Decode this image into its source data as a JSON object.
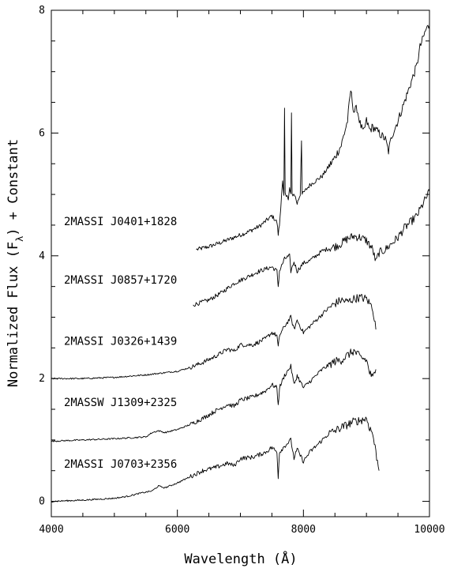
{
  "chart_data": {
    "type": "line",
    "xlabel": "Wavelength (Å)",
    "ylabel_main": "Normalized Flux (F",
    "ylabel_sub": "λ",
    "ylabel_tail": ") + Constant",
    "xlim": [
      4000,
      10000
    ],
    "ylim": [
      -0.25,
      8.0
    ],
    "x_ticks": [
      4000,
      6000,
      8000,
      10000
    ],
    "x_tick_labels": [
      "4000",
      "6000",
      "8000",
      "10000"
    ],
    "x_minor_step": 500,
    "y_ticks": [
      0,
      2,
      4,
      6,
      8
    ],
    "y_tick_labels": [
      "0",
      "2",
      "4",
      "6",
      "8"
    ],
    "y_minor_step": 0.5,
    "grid": false,
    "series": [
      {
        "name": "2MASSI J0401+1828",
        "label_pos": [
          4200,
          4.5
        ],
        "points": [
          [
            6300,
            4.1
          ],
          [
            6500,
            4.15
          ],
          [
            6700,
            4.22
          ],
          [
            6900,
            4.3
          ],
          [
            7100,
            4.38
          ],
          [
            7300,
            4.48
          ],
          [
            7500,
            4.65
          ],
          [
            7580,
            4.55
          ],
          [
            7600,
            4.35
          ],
          [
            7620,
            4.5
          ],
          [
            7650,
            4.95
          ],
          [
            7670,
            5.2
          ],
          [
            7690,
            4.95
          ],
          [
            7700,
            6.4
          ],
          [
            7710,
            5.0
          ],
          [
            7740,
            5.0
          ],
          [
            7760,
            4.9
          ],
          [
            7780,
            5.1
          ],
          [
            7800,
            5.0
          ],
          [
            7810,
            6.3
          ],
          [
            7820,
            5.0
          ],
          [
            7860,
            5.0
          ],
          [
            7900,
            4.85
          ],
          [
            7950,
            5.0
          ],
          [
            7970,
            5.9
          ],
          [
            7980,
            5.0
          ],
          [
            8100,
            5.15
          ],
          [
            8300,
            5.3
          ],
          [
            8500,
            5.6
          ],
          [
            8600,
            5.8
          ],
          [
            8700,
            6.2
          ],
          [
            8750,
            6.7
          ],
          [
            8800,
            6.35
          ],
          [
            8850,
            6.4
          ],
          [
            8900,
            6.15
          ],
          [
            8950,
            6.0
          ],
          [
            9000,
            6.2
          ],
          [
            9050,
            6.05
          ],
          [
            9100,
            6.1
          ],
          [
            9200,
            6.0
          ],
          [
            9300,
            5.9
          ],
          [
            9350,
            5.7
          ],
          [
            9400,
            5.95
          ],
          [
            9500,
            6.2
          ],
          [
            9600,
            6.5
          ],
          [
            9700,
            6.8
          ],
          [
            9800,
            7.1
          ],
          [
            9850,
            7.4
          ],
          [
            9900,
            7.55
          ],
          [
            9950,
            7.7
          ],
          [
            10000,
            7.75
          ]
        ]
      },
      {
        "name": "2MASSI J0857+1720",
        "label_pos": [
          4200,
          3.55
        ],
        "points": [
          [
            6250,
            3.2
          ],
          [
            6500,
            3.28
          ],
          [
            6700,
            3.4
          ],
          [
            6900,
            3.55
          ],
          [
            7100,
            3.65
          ],
          [
            7300,
            3.75
          ],
          [
            7500,
            3.82
          ],
          [
            7580,
            3.75
          ],
          [
            7600,
            3.5
          ],
          [
            7620,
            3.75
          ],
          [
            7700,
            3.95
          ],
          [
            7780,
            4.0
          ],
          [
            7800,
            3.75
          ],
          [
            7850,
            3.9
          ],
          [
            7900,
            3.75
          ],
          [
            8000,
            3.88
          ],
          [
            8100,
            3.92
          ],
          [
            8200,
            4.0
          ],
          [
            8300,
            4.08
          ],
          [
            8400,
            4.12
          ],
          [
            8500,
            4.15
          ],
          [
            8600,
            4.2
          ],
          [
            8700,
            4.28
          ],
          [
            8800,
            4.32
          ],
          [
            8900,
            4.3
          ],
          [
            9000,
            4.25
          ],
          [
            9100,
            4.1
          ],
          [
            9150,
            3.9
          ],
          [
            9200,
            4.05
          ],
          [
            9300,
            4.1
          ],
          [
            9400,
            4.2
          ],
          [
            9500,
            4.3
          ],
          [
            9600,
            4.45
          ],
          [
            9700,
            4.55
          ],
          [
            9800,
            4.65
          ],
          [
            9900,
            4.85
          ],
          [
            10000,
            5.05
          ]
        ]
      },
      {
        "name": "2MASSI J0326+1439",
        "label_pos": [
          4200,
          2.55
        ],
        "points": [
          [
            4000,
            2.0
          ],
          [
            4500,
            2.0
          ],
          [
            5000,
            2.02
          ],
          [
            5500,
            2.06
          ],
          [
            6000,
            2.12
          ],
          [
            6200,
            2.18
          ],
          [
            6400,
            2.26
          ],
          [
            6600,
            2.36
          ],
          [
            6800,
            2.48
          ],
          [
            6900,
            2.45
          ],
          [
            7000,
            2.55
          ],
          [
            7200,
            2.55
          ],
          [
            7400,
            2.65
          ],
          [
            7500,
            2.75
          ],
          [
            7580,
            2.7
          ],
          [
            7600,
            2.5
          ],
          [
            7620,
            2.7
          ],
          [
            7700,
            2.85
          ],
          [
            7800,
            3.0
          ],
          [
            7850,
            2.8
          ],
          [
            7900,
            2.95
          ],
          [
            8000,
            2.75
          ],
          [
            8100,
            2.85
          ],
          [
            8200,
            2.95
          ],
          [
            8300,
            3.05
          ],
          [
            8400,
            3.15
          ],
          [
            8500,
            3.22
          ],
          [
            8600,
            3.28
          ],
          [
            8700,
            3.25
          ],
          [
            8800,
            3.3
          ],
          [
            8900,
            3.32
          ],
          [
            9000,
            3.3
          ],
          [
            9100,
            3.15
          ],
          [
            9150,
            2.8
          ]
        ]
      },
      {
        "name": "2MASSW J1309+2325",
        "label_pos": [
          4200,
          1.55
        ],
        "points": [
          [
            4000,
            0.98
          ],
          [
            4500,
            1.0
          ],
          [
            5000,
            1.02
          ],
          [
            5500,
            1.05
          ],
          [
            5600,
            1.12
          ],
          [
            5700,
            1.15
          ],
          [
            5800,
            1.12
          ],
          [
            6000,
            1.17
          ],
          [
            6200,
            1.25
          ],
          [
            6400,
            1.35
          ],
          [
            6600,
            1.47
          ],
          [
            6800,
            1.58
          ],
          [
            6900,
            1.55
          ],
          [
            7000,
            1.65
          ],
          [
            7200,
            1.7
          ],
          [
            7400,
            1.8
          ],
          [
            7500,
            1.9
          ],
          [
            7580,
            1.85
          ],
          [
            7600,
            1.55
          ],
          [
            7620,
            1.85
          ],
          [
            7700,
            2.05
          ],
          [
            7800,
            2.2
          ],
          [
            7850,
            1.9
          ],
          [
            7900,
            2.05
          ],
          [
            8000,
            1.85
          ],
          [
            8100,
            1.95
          ],
          [
            8200,
            2.05
          ],
          [
            8300,
            2.15
          ],
          [
            8400,
            2.22
          ],
          [
            8500,
            2.28
          ],
          [
            8600,
            2.3
          ],
          [
            8700,
            2.38
          ],
          [
            8800,
            2.45
          ],
          [
            8900,
            2.35
          ],
          [
            9000,
            2.3
          ],
          [
            9050,
            2.1
          ],
          [
            9100,
            2.0
          ],
          [
            9150,
            2.15
          ]
        ]
      },
      {
        "name": "2MASSI J0703+2356",
        "label_pos": [
          4200,
          0.55
        ],
        "points": [
          [
            4000,
            0.0
          ],
          [
            4500,
            0.02
          ],
          [
            5000,
            0.05
          ],
          [
            5200,
            0.08
          ],
          [
            5400,
            0.13
          ],
          [
            5600,
            0.17
          ],
          [
            5700,
            0.25
          ],
          [
            5800,
            0.22
          ],
          [
            6000,
            0.3
          ],
          [
            6200,
            0.4
          ],
          [
            6400,
            0.5
          ],
          [
            6600,
            0.55
          ],
          [
            6800,
            0.62
          ],
          [
            6900,
            0.58
          ],
          [
            7000,
            0.7
          ],
          [
            7200,
            0.72
          ],
          [
            7400,
            0.8
          ],
          [
            7500,
            0.88
          ],
          [
            7580,
            0.8
          ],
          [
            7600,
            0.4
          ],
          [
            7620,
            0.8
          ],
          [
            7700,
            0.9
          ],
          [
            7800,
            1.0
          ],
          [
            7850,
            0.7
          ],
          [
            7900,
            0.85
          ],
          [
            8000,
            0.65
          ],
          [
            8100,
            0.8
          ],
          [
            8200,
            0.9
          ],
          [
            8300,
            1.0
          ],
          [
            8400,
            1.1
          ],
          [
            8500,
            1.15
          ],
          [
            8600,
            1.2
          ],
          [
            8700,
            1.25
          ],
          [
            8800,
            1.3
          ],
          [
            8900,
            1.32
          ],
          [
            9000,
            1.35
          ],
          [
            9050,
            1.2
          ],
          [
            9100,
            1.1
          ],
          [
            9150,
            0.8
          ],
          [
            9200,
            0.5
          ]
        ]
      }
    ]
  }
}
